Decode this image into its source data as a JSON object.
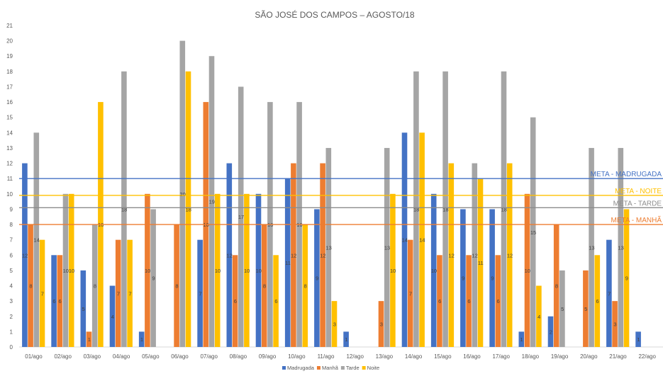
{
  "chart_data": {
    "type": "bar",
    "title": "SÃO JOSÉ DOS CAMPOS – AGOSTO/18",
    "xlabel": "",
    "ylabel": "",
    "ylim": [
      0,
      21
    ],
    "y_ticks": [
      "0",
      "1",
      "2",
      "3",
      "4",
      "5",
      "6",
      "7",
      "8",
      "9",
      "10",
      "11",
      "12",
      "13",
      "14",
      "15",
      "16",
      "17",
      "18",
      "19",
      "20",
      "21"
    ],
    "grid": false,
    "legend_position": "bottom",
    "categories": [
      "01/ago",
      "02/ago",
      "03/ago",
      "04/ago",
      "05/ago",
      "06/ago",
      "07/ago",
      "08/ago",
      "09/ago",
      "10/ago",
      "11/ago",
      "12/ago",
      "13/ago",
      "14/ago",
      "15/ago",
      "16/ago",
      "17/ago",
      "18/ago",
      "19/ago",
      "20/ago",
      "21/ago",
      "22/ago"
    ],
    "series": [
      {
        "name": "Madrugada",
        "color": "#4472C4",
        "values": [
          12,
          6,
          5,
          4,
          1,
          null,
          7,
          12,
          10,
          11,
          9,
          1,
          null,
          14,
          10,
          9,
          9,
          1,
          2,
          null,
          7,
          1
        ],
        "labels": [
          "12",
          "6",
          "5",
          "4",
          "1",
          "",
          "7",
          "12",
          "10",
          "11",
          "9",
          "1",
          "",
          "14",
          "10",
          "9",
          "9",
          "1",
          "2",
          "",
          "7",
          "1"
        ]
      },
      {
        "name": "Manhã",
        "color": "#ED7D31",
        "values": [
          8,
          6,
          1,
          7,
          10,
          8,
          16,
          6,
          8,
          12,
          12,
          null,
          3,
          7,
          6,
          6,
          6,
          10,
          8,
          5,
          3,
          null
        ],
        "labels": [
          "8",
          "6",
          "1",
          "7",
          "10",
          "8",
          "16",
          "6",
          "8",
          "12",
          "12",
          "",
          "3",
          "7",
          "6",
          "6",
          "6",
          "10",
          "8",
          "5",
          "3",
          ""
        ]
      },
      {
        "name": "Tarde",
        "color": "#A5A5A5",
        "values": [
          14,
          10,
          8,
          18,
          9,
          20,
          19,
          17,
          16,
          16,
          13,
          null,
          13,
          18,
          18,
          12,
          18,
          15,
          5,
          13,
          13,
          null
        ],
        "labels": [
          "14",
          "10",
          "8",
          "18",
          "9",
          "20",
          "19",
          "17",
          "16",
          "16",
          "13",
          "",
          "13",
          "18",
          "18",
          "12",
          "18",
          "15",
          "5",
          "13",
          "13",
          ""
        ]
      },
      {
        "name": "Noite",
        "color": "#FFC000",
        "values": [
          7,
          10,
          16,
          7,
          null,
          18,
          10,
          10,
          6,
          8,
          3,
          null,
          10,
          14,
          12,
          11,
          12,
          4,
          null,
          6,
          9,
          null
        ],
        "labels": [
          "7",
          "10",
          "16",
          "7",
          "",
          "18",
          "10",
          "10",
          "6",
          "8",
          "3",
          "",
          "10",
          "14",
          "12",
          "11",
          "12",
          "4",
          "",
          "6",
          "9",
          ""
        ]
      }
    ],
    "reference_lines": [
      {
        "label": "META - MADRUGADA",
        "value": 11,
        "color": "#4472C4"
      },
      {
        "label": "META - NOITE",
        "value": 9.9,
        "color": "#FFC000"
      },
      {
        "label": "META - TARDE",
        "value": 9.1,
        "color": "#8C8C8C"
      },
      {
        "label": "META - MANHÃ",
        "value": 8,
        "color": "#ED7D31"
      }
    ]
  }
}
